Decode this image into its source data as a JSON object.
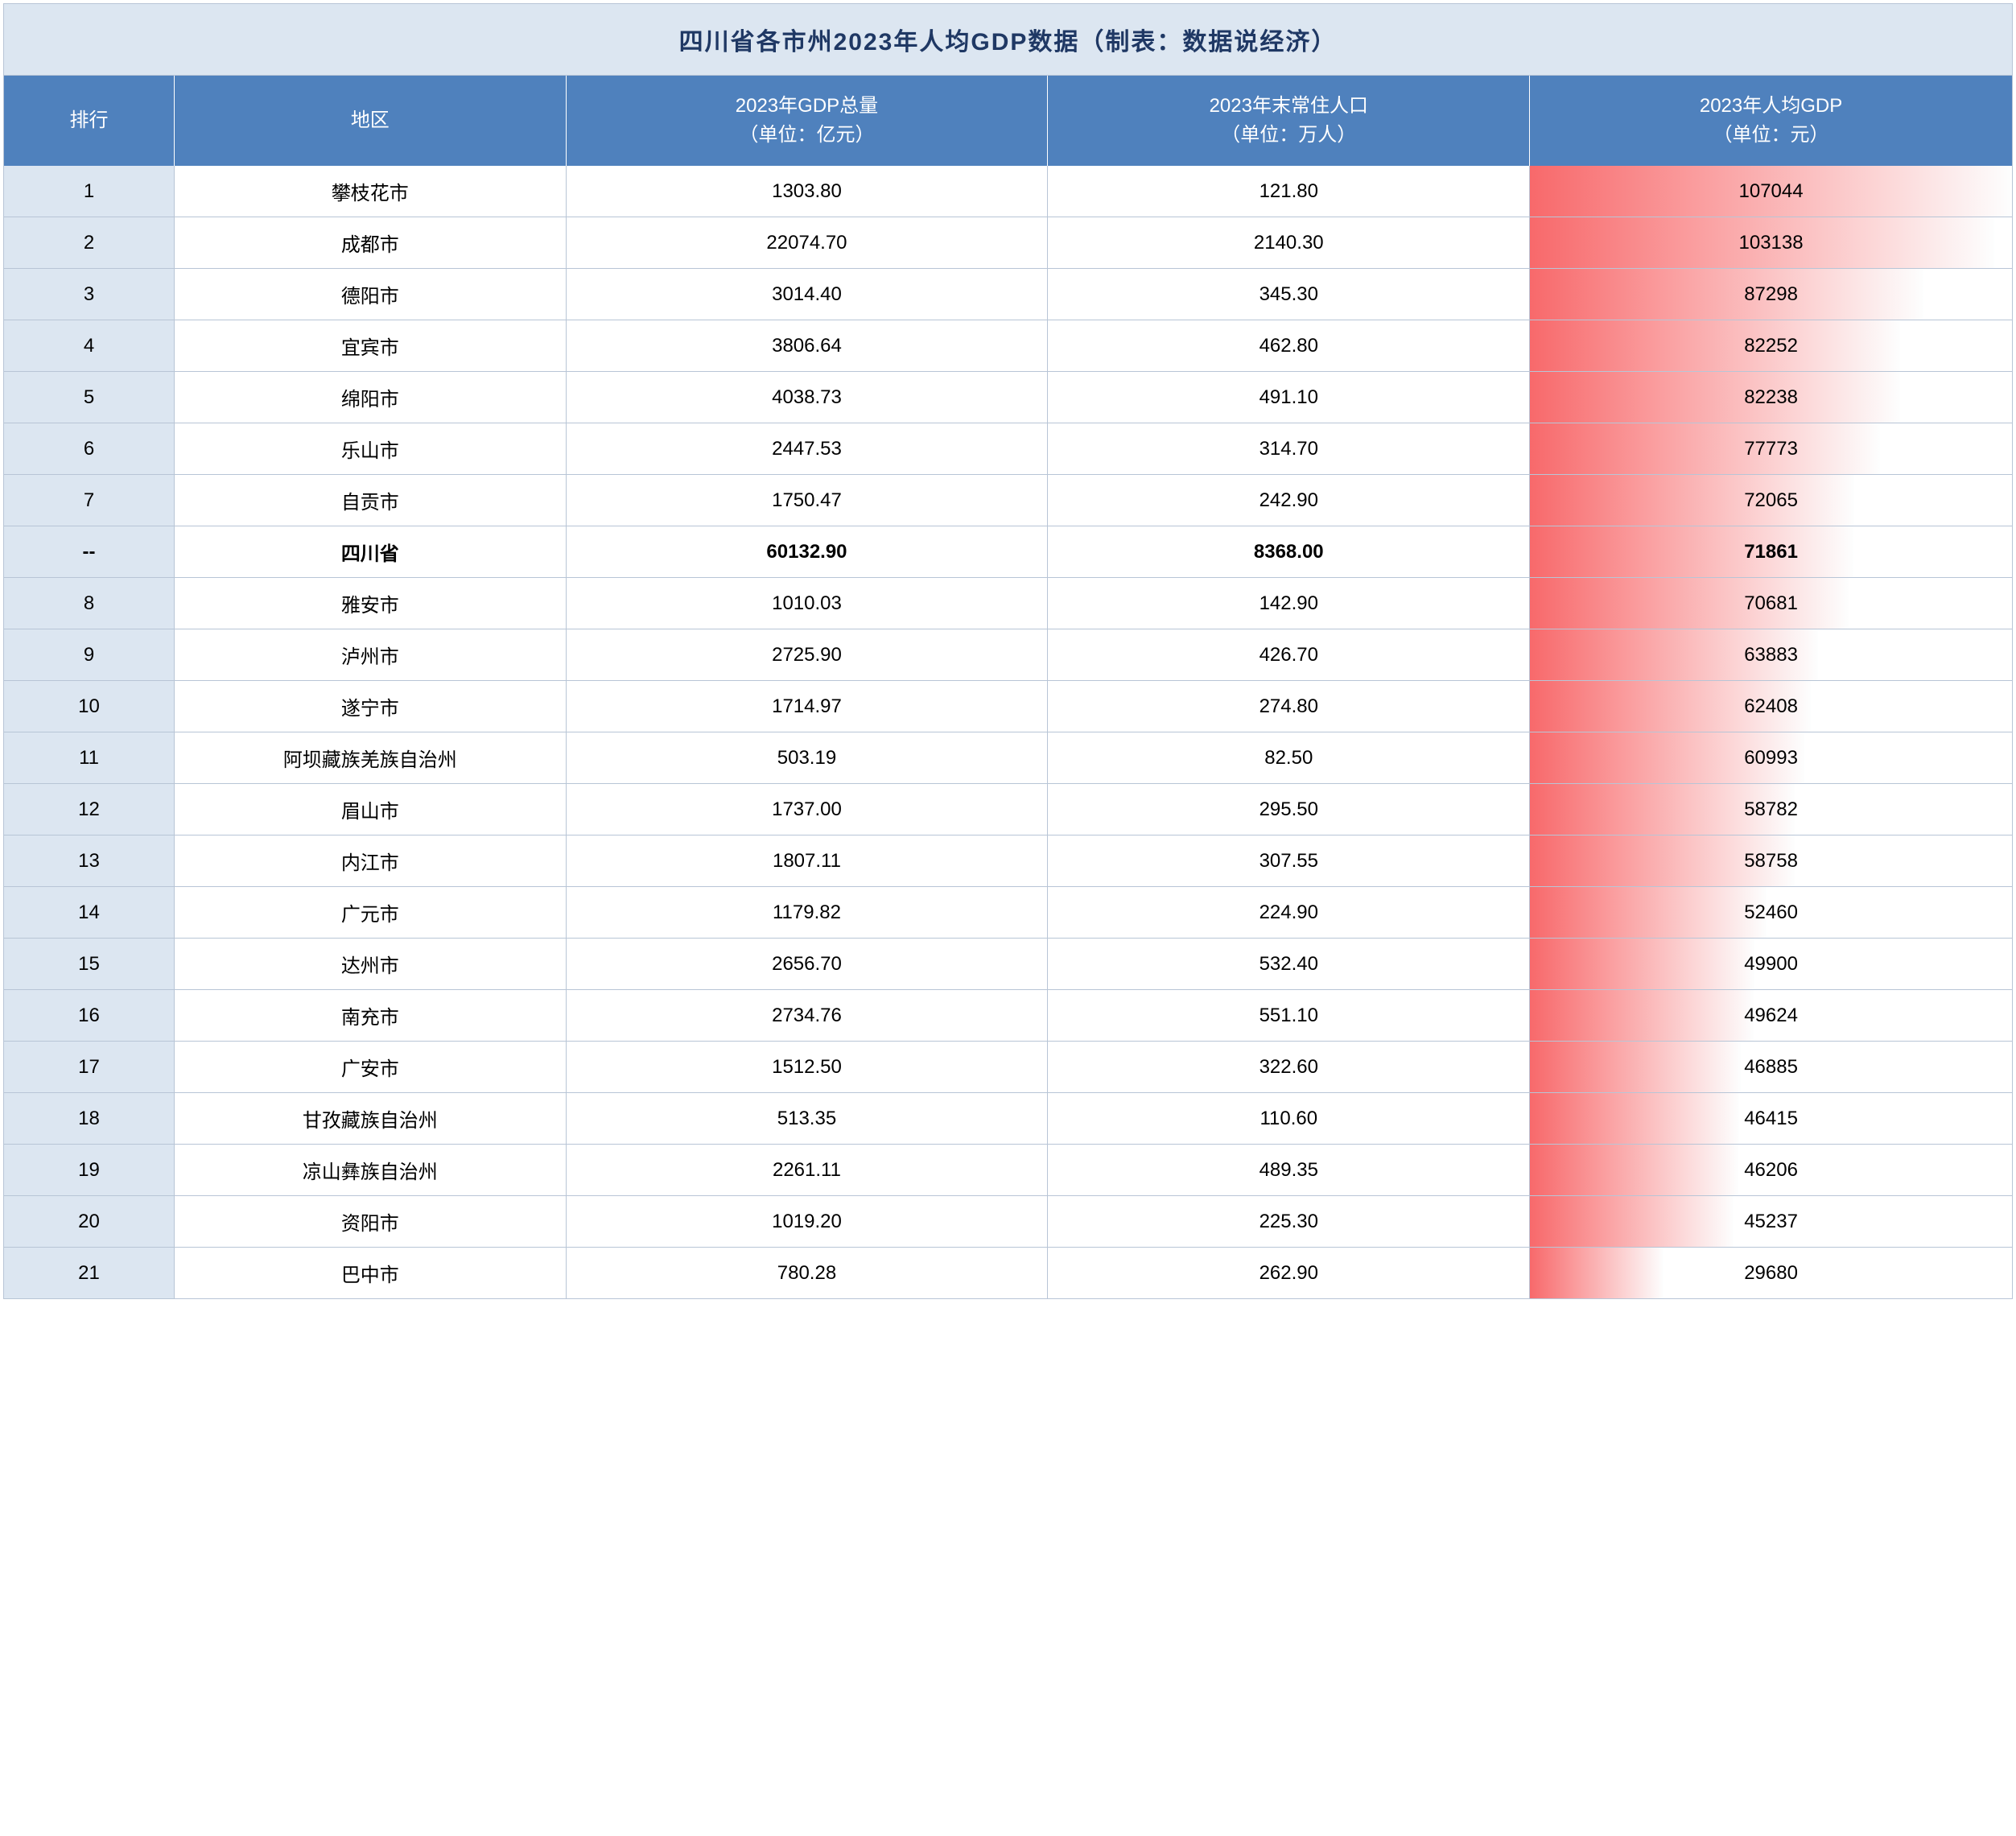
{
  "title": "四川省各市州2023年人均GDP数据（制表：数据说经济）",
  "colors": {
    "title_bg": "#dce6f1",
    "title_text": "#1f3864",
    "header_bg": "#4f81bd",
    "header_text": "#ffffff",
    "rank_bg": "#dce6f1",
    "border": "#b8c5d6",
    "bar_start": "#f8696b",
    "bar_end": "#fdfefe",
    "cell_text": "#000000"
  },
  "font": {
    "title_size": 30,
    "header_size": 24,
    "cell_size": 24
  },
  "columns": {
    "rank": {
      "label": "排行",
      "width_pct": 8.5
    },
    "region": {
      "label": "地区",
      "width_pct": 19.5
    },
    "gdp": {
      "label1": "2023年GDP总量",
      "label2": "（单位：亿元）",
      "width_pct": 24
    },
    "pop": {
      "label1": "2023年末常住人口",
      "label2": "（单位：万人）",
      "width_pct": 24
    },
    "percap": {
      "label1": "2023年人均GDP",
      "label2": "（单位：元）",
      "width_pct": 24
    }
  },
  "max_percap": 107044,
  "rows": [
    {
      "rank": "1",
      "region": "攀枝花市",
      "gdp": "1303.80",
      "pop": "121.80",
      "percap": "107044",
      "percap_val": 107044,
      "bold": false
    },
    {
      "rank": "2",
      "region": "成都市",
      "gdp": "22074.70",
      "pop": "2140.30",
      "percap": "103138",
      "percap_val": 103138,
      "bold": false
    },
    {
      "rank": "3",
      "region": "德阳市",
      "gdp": "3014.40",
      "pop": "345.30",
      "percap": "87298",
      "percap_val": 87298,
      "bold": false
    },
    {
      "rank": "4",
      "region": "宜宾市",
      "gdp": "3806.64",
      "pop": "462.80",
      "percap": "82252",
      "percap_val": 82252,
      "bold": false
    },
    {
      "rank": "5",
      "region": "绵阳市",
      "gdp": "4038.73",
      "pop": "491.10",
      "percap": "82238",
      "percap_val": 82238,
      "bold": false
    },
    {
      "rank": "6",
      "region": "乐山市",
      "gdp": "2447.53",
      "pop": "314.70",
      "percap": "77773",
      "percap_val": 77773,
      "bold": false
    },
    {
      "rank": "7",
      "region": "自贡市",
      "gdp": "1750.47",
      "pop": "242.90",
      "percap": "72065",
      "percap_val": 72065,
      "bold": false
    },
    {
      "rank": "--",
      "region": "四川省",
      "gdp": "60132.90",
      "pop": "8368.00",
      "percap": "71861",
      "percap_val": 71861,
      "bold": true
    },
    {
      "rank": "8",
      "region": "雅安市",
      "gdp": "1010.03",
      "pop": "142.90",
      "percap": "70681",
      "percap_val": 70681,
      "bold": false
    },
    {
      "rank": "9",
      "region": "泸州市",
      "gdp": "2725.90",
      "pop": "426.70",
      "percap": "63883",
      "percap_val": 63883,
      "bold": false
    },
    {
      "rank": "10",
      "region": "遂宁市",
      "gdp": "1714.97",
      "pop": "274.80",
      "percap": "62408",
      "percap_val": 62408,
      "bold": false
    },
    {
      "rank": "11",
      "region": "阿坝藏族羌族自治州",
      "gdp": "503.19",
      "pop": "82.50",
      "percap": "60993",
      "percap_val": 60993,
      "bold": false
    },
    {
      "rank": "12",
      "region": "眉山市",
      "gdp": "1737.00",
      "pop": "295.50",
      "percap": "58782",
      "percap_val": 58782,
      "bold": false
    },
    {
      "rank": "13",
      "region": "内江市",
      "gdp": "1807.11",
      "pop": "307.55",
      "percap": "58758",
      "percap_val": 58758,
      "bold": false
    },
    {
      "rank": "14",
      "region": "广元市",
      "gdp": "1179.82",
      "pop": "224.90",
      "percap": "52460",
      "percap_val": 52460,
      "bold": false
    },
    {
      "rank": "15",
      "region": "达州市",
      "gdp": "2656.70",
      "pop": "532.40",
      "percap": "49900",
      "percap_val": 49900,
      "bold": false
    },
    {
      "rank": "16",
      "region": "南充市",
      "gdp": "2734.76",
      "pop": "551.10",
      "percap": "49624",
      "percap_val": 49624,
      "bold": false
    },
    {
      "rank": "17",
      "region": "广安市",
      "gdp": "1512.50",
      "pop": "322.60",
      "percap": "46885",
      "percap_val": 46885,
      "bold": false
    },
    {
      "rank": "18",
      "region": "甘孜藏族自治州",
      "gdp": "513.35",
      "pop": "110.60",
      "percap": "46415",
      "percap_val": 46415,
      "bold": false
    },
    {
      "rank": "19",
      "region": "凉山彝族自治州",
      "gdp": "2261.11",
      "pop": "489.35",
      "percap": "46206",
      "percap_val": 46206,
      "bold": false
    },
    {
      "rank": "20",
      "region": "资阳市",
      "gdp": "1019.20",
      "pop": "225.30",
      "percap": "45237",
      "percap_val": 45237,
      "bold": false
    },
    {
      "rank": "21",
      "region": "巴中市",
      "gdp": "780.28",
      "pop": "262.90",
      "percap": "29680",
      "percap_val": 29680,
      "bold": false
    }
  ]
}
